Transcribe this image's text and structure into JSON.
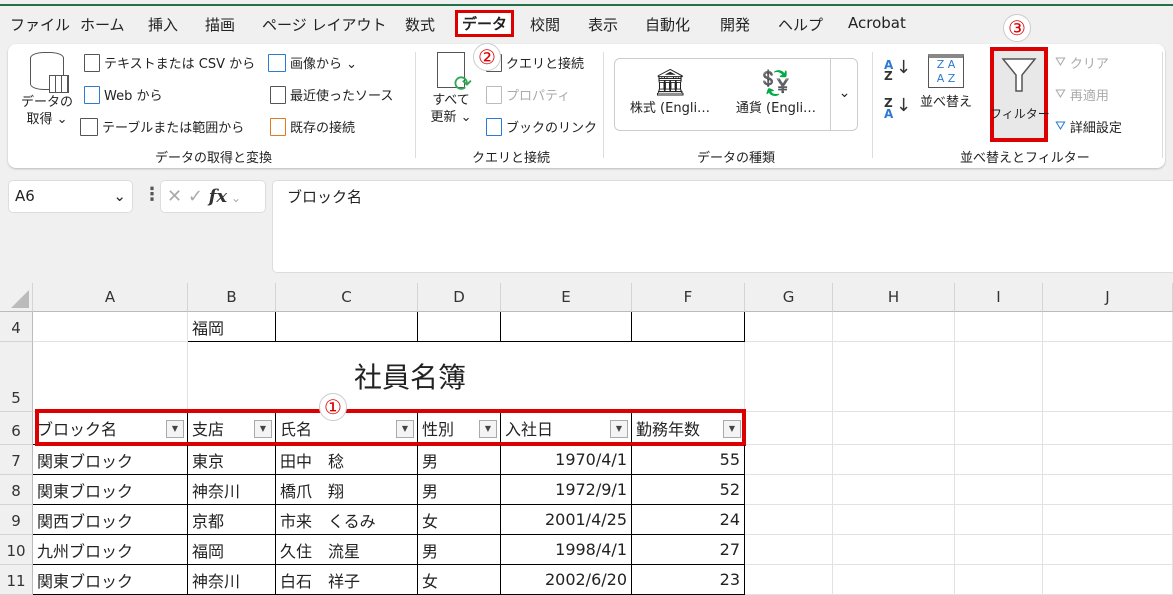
{
  "tabs": [
    "ファイル",
    "ホーム",
    "挿入",
    "描画",
    "ページ レイアウト",
    "数式",
    "データ",
    "校閲",
    "表示",
    "自動化",
    "開発",
    "ヘルプ",
    "Acrobat"
  ],
  "active_tab": "データ",
  "annotations": {
    "one": "①",
    "two": "②",
    "three": "③"
  },
  "ribbon": {
    "get_data": {
      "label1": "データの",
      "label2": "取得 ⌄",
      "items": [
        "テキストまたは CSV から",
        "Web から",
        "テーブルまたは範囲から",
        "画像から ⌄",
        "最近使ったソース",
        "既存の接続"
      ],
      "group": "データの取得と変換"
    },
    "queries": {
      "refresh1": "すべて",
      "refresh2": "更新 ⌄",
      "items": [
        "クエリと接続",
        "プロパティ",
        "ブックのリンク"
      ],
      "group": "クエリと接続"
    },
    "data_types": {
      "stocks": "株式 (Engli…",
      "currency": "通貨 (Engli…",
      "group": "データの種類"
    },
    "sort_filter": {
      "sort": "並べ替え",
      "filter": "フィルター",
      "clear": "クリア",
      "reapply": "再適用",
      "advanced": "詳細設定",
      "group": "並べ替えとフィルター"
    }
  },
  "formula_bar": {
    "name_box": "A6",
    "content": "ブロック名",
    "fx": "fx"
  },
  "columns": [
    "A",
    "B",
    "C",
    "D",
    "E",
    "F",
    "G",
    "H",
    "I",
    "J"
  ],
  "rows": [
    {
      "num": "4",
      "cells": [
        "",
        "福岡",
        "",
        "",
        "",
        ""
      ]
    },
    {
      "num": "5",
      "title": "社員名簿"
    },
    {
      "num": "6",
      "header": true,
      "cells": [
        "ブロック名",
        "支店",
        "氏名",
        "性別",
        "入社日",
        "勤務年数"
      ]
    },
    {
      "num": "7",
      "cells": [
        "関東ブロック",
        "東京",
        "田中　稔",
        "男",
        "1970/4/1",
        "55"
      ]
    },
    {
      "num": "8",
      "cells": [
        "関東ブロック",
        "神奈川",
        "橋爪　翔",
        "男",
        "1972/9/1",
        "52"
      ]
    },
    {
      "num": "9",
      "cells": [
        "関西ブロック",
        "京都",
        "市来　くるみ",
        "女",
        "2001/4/25",
        "24"
      ]
    },
    {
      "num": "10",
      "cells": [
        "九州ブロック",
        "福岡",
        "久住　流星",
        "男",
        "1998/4/1",
        "27"
      ]
    },
    {
      "num": "11",
      "cells": [
        "関東ブロック",
        "神奈川",
        "白石　祥子",
        "女",
        "2002/6/20",
        "23"
      ]
    }
  ],
  "colors": {
    "accent": "#217346",
    "highlight": "#d00000"
  }
}
